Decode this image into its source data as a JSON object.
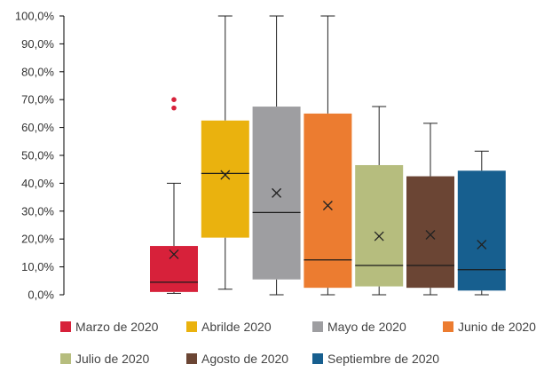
{
  "chart_data": {
    "type": "box",
    "ylim": [
      0,
      100
    ],
    "yticks": [
      "0,0%",
      "10,0%",
      "20,0%",
      "30,0%",
      "40,0%",
      "50,0%",
      "60,0%",
      "70,0%",
      "80,0%",
      "90,0%",
      "100,0%"
    ],
    "ytick_values": [
      0,
      10,
      20,
      30,
      40,
      50,
      60,
      70,
      80,
      90,
      100
    ],
    "grid": false,
    "legend_position": "bottom",
    "series": [
      {
        "name": "Marzo de 2020",
        "color": "#d7213a",
        "min": 0.5,
        "q1": 1.0,
        "median": 4.5,
        "q3": 17.5,
        "max": 40.0,
        "mean": 14.5,
        "outliers": [
          67.0,
          70.0
        ]
      },
      {
        "name": "Abrilde 2020",
        "color": "#eab20e",
        "min": 2.0,
        "q1": 20.5,
        "median": 43.5,
        "q3": 62.5,
        "max": 100.0,
        "mean": 43.0,
        "outliers": []
      },
      {
        "name": "Mayo de 2020",
        "color": "#9e9ea1",
        "min": 0.0,
        "q1": 5.5,
        "median": 29.5,
        "q3": 67.5,
        "max": 100.0,
        "mean": 36.5,
        "outliers": []
      },
      {
        "name": "Junio de 2020",
        "color": "#ec7c30",
        "min": 0.0,
        "q1": 2.5,
        "median": 12.5,
        "q3": 65.0,
        "max": 100.0,
        "mean": 32.0,
        "outliers": []
      },
      {
        "name": "Julio de 2020",
        "color": "#b6bd7e",
        "min": 0.0,
        "q1": 3.0,
        "median": 10.5,
        "q3": 46.5,
        "max": 67.5,
        "mean": 21.0,
        "outliers": []
      },
      {
        "name": "Agosto de 2020",
        "color": "#6b4534",
        "min": 0.0,
        "q1": 2.5,
        "median": 10.5,
        "q3": 42.5,
        "max": 61.5,
        "mean": 21.5,
        "outliers": []
      },
      {
        "name": "Septiembre de 2020",
        "color": "#175f8f",
        "min": 0.0,
        "q1": 1.5,
        "median": 9.0,
        "q3": 44.5,
        "max": 51.5,
        "mean": 18.0,
        "outliers": []
      }
    ]
  }
}
